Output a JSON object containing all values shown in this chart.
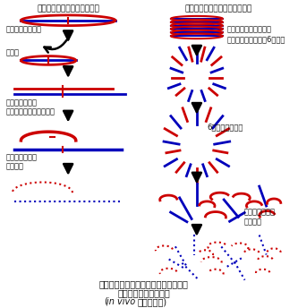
{
  "left_title": "グルテリン分子単位での分解",
  "right_title": "サブユニットの状態（予想図）",
  "label_glutelin": "グルテリン蛋白質",
  "label_fragment": "分断化",
  "label_disulfide": "分子内・分子間\nジスルフィド結合の切断",
  "label_amino1": "アミノ酸レベル\nへの分解",
  "label_proteinbody": "プロテインボディでの\nコンパクトな収納（6量体）",
  "label_6mer": "6量体構造の崩壊",
  "label_amino2": "アミノ酸レベル\nへの分解",
  "caption1": "図３．　イネ貯藏蛋白質グルテリンの",
  "caption2": "発芽における分解機構",
  "caption3_pre": "(",
  "caption3_italic": "in vivo",
  "caption3_post": "での応用例)",
  "red": "#cc0000",
  "blue": "#0000bb",
  "black": "#111111"
}
